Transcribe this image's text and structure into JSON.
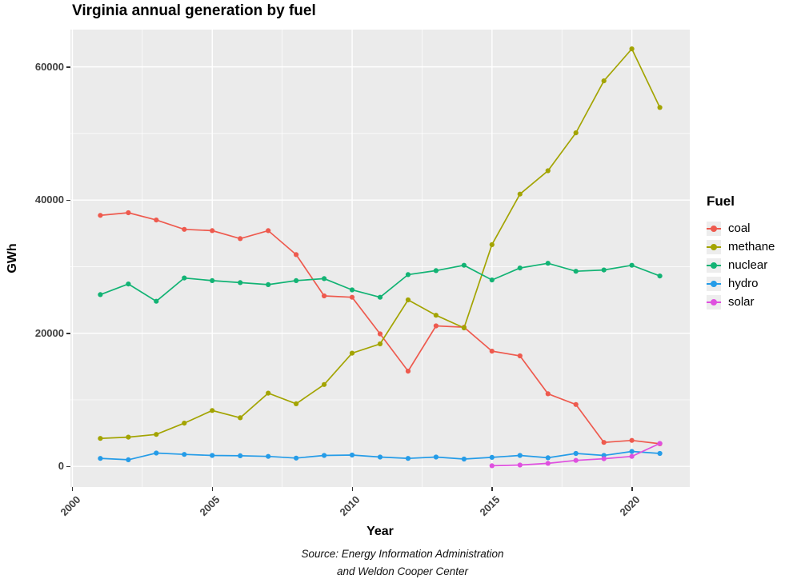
{
  "title": "Virginia annual generation by fuel",
  "caption": {
    "line1": "Source: Energy Information Administration",
    "line2": "and Weldon Cooper Center"
  },
  "colors": {
    "panel_background": "#EBEBEB",
    "gridline": "#FFFFFF",
    "tick_text": "#3f3f3f"
  },
  "chart_data": {
    "type": "line",
    "title": "Virginia annual generation by fuel",
    "xlabel": "Year",
    "ylabel": "GWh",
    "legend_title": "Fuel",
    "legend_position": "right",
    "grid": true,
    "xlim": [
      1999.93,
      2022.07
    ],
    "ylim": [
      -3100,
      65600
    ],
    "x_ticks": [
      2000,
      2005,
      2010,
      2015,
      2020
    ],
    "x_minor": [
      2002.5,
      2007.5,
      2012.5,
      2017.5
    ],
    "y_ticks": [
      0,
      20000,
      40000,
      60000
    ],
    "y_minor": [
      10000,
      30000,
      50000
    ],
    "series": [
      {
        "name": "coal",
        "color": "#EE5A4E",
        "x": [
          2001,
          2002,
          2003,
          2004,
          2005,
          2006,
          2007,
          2008,
          2009,
          2010,
          2011,
          2012,
          2013,
          2014,
          2015,
          2016,
          2017,
          2018,
          2019,
          2020,
          2021
        ],
        "values": [
          37700,
          38100,
          37000,
          35600,
          35400,
          34200,
          35400,
          31800,
          25600,
          25400,
          19900,
          14300,
          21100,
          20900,
          17300,
          16600,
          10900,
          9300,
          3600,
          3900,
          3400
        ]
      },
      {
        "name": "methane",
        "color": "#A3A402",
        "x": [
          2001,
          2002,
          2003,
          2004,
          2005,
          2006,
          2007,
          2008,
          2009,
          2010,
          2011,
          2012,
          2013,
          2014,
          2015,
          2016,
          2017,
          2018,
          2019,
          2020,
          2021
        ],
        "values": [
          4200,
          4400,
          4800,
          6500,
          8400,
          7300,
          11000,
          9400,
          12300,
          17000,
          18400,
          25000,
          22700,
          20800,
          33300,
          40900,
          44400,
          50100,
          57900,
          62700,
          53900
        ]
      },
      {
        "name": "nuclear",
        "color": "#12B374",
        "x": [
          2001,
          2002,
          2003,
          2004,
          2005,
          2006,
          2007,
          2008,
          2009,
          2010,
          2011,
          2012,
          2013,
          2014,
          2015,
          2016,
          2017,
          2018,
          2019,
          2020,
          2021
        ],
        "values": [
          25800,
          27400,
          24800,
          28300,
          27900,
          27600,
          27300,
          27900,
          28200,
          26500,
          25400,
          28800,
          29400,
          30200,
          28000,
          29800,
          30500,
          29300,
          29500,
          30200,
          28600
        ]
      },
      {
        "name": "hydro",
        "color": "#259CE8",
        "x": [
          2001,
          2002,
          2003,
          2004,
          2005,
          2006,
          2007,
          2008,
          2009,
          2010,
          2011,
          2012,
          2013,
          2014,
          2015,
          2016,
          2017,
          2018,
          2019,
          2020,
          2021
        ],
        "values": [
          1200,
          1000,
          2000,
          1800,
          1650,
          1600,
          1500,
          1250,
          1650,
          1700,
          1400,
          1200,
          1400,
          1100,
          1350,
          1650,
          1300,
          1950,
          1650,
          2250,
          1950
        ]
      },
      {
        "name": "solar",
        "color": "#DF50DF",
        "x": [
          2015,
          2016,
          2017,
          2018,
          2019,
          2020,
          2021
        ],
        "values": [
          100,
          200,
          450,
          900,
          1150,
          1500,
          3450
        ]
      }
    ]
  }
}
